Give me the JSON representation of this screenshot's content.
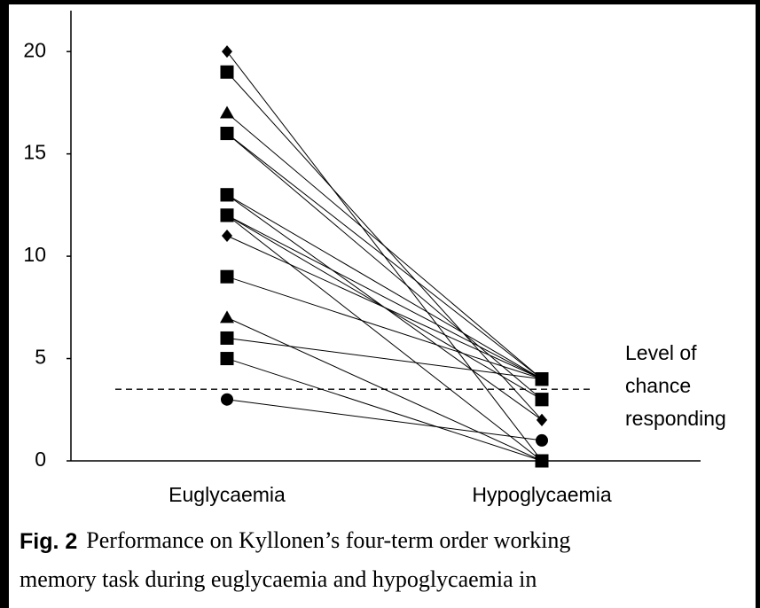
{
  "chart_data": {
    "type": "paired",
    "categories": [
      "Euglycaemia",
      "Hypoglycaemia"
    ],
    "ylim": [
      0,
      22
    ],
    "yticks": [
      0,
      5,
      10,
      15,
      20
    ],
    "color": "#000000",
    "series": [
      {
        "markers": [
          "diamond",
          "square"
        ],
        "values": [
          20,
          0
        ]
      },
      {
        "markers": [
          "square",
          "diamond"
        ],
        "values": [
          19,
          2
        ]
      },
      {
        "markers": [
          "triangle",
          "square"
        ],
        "values": [
          17,
          4
        ]
      },
      {
        "markers": [
          "square",
          "square"
        ],
        "values": [
          16,
          4
        ]
      },
      {
        "markers": [
          "square",
          "square"
        ],
        "values": [
          16,
          3
        ]
      },
      {
        "markers": [
          "square",
          "square"
        ],
        "values": [
          13,
          4
        ]
      },
      {
        "markers": [
          "square",
          "diamond"
        ],
        "values": [
          13,
          2
        ]
      },
      {
        "markers": [
          "square",
          "square"
        ],
        "values": [
          12,
          4
        ]
      },
      {
        "markers": [
          "square",
          "square"
        ],
        "values": [
          12,
          3
        ]
      },
      {
        "markers": [
          "square",
          "square"
        ],
        "values": [
          12,
          0
        ]
      },
      {
        "markers": [
          "diamond",
          "square"
        ],
        "values": [
          11,
          4
        ]
      },
      {
        "markers": [
          "square",
          "square"
        ],
        "values": [
          9,
          4
        ]
      },
      {
        "markers": [
          "triangle",
          "square"
        ],
        "values": [
          7,
          0
        ]
      },
      {
        "markers": [
          "square",
          "square"
        ],
        "values": [
          6,
          4
        ]
      },
      {
        "markers": [
          "square",
          "square"
        ],
        "values": [
          5,
          0
        ]
      },
      {
        "markers": [
          "circle",
          "circle"
        ],
        "values": [
          3,
          1
        ]
      }
    ],
    "reference_line": {
      "value": 3.5,
      "dashed": true,
      "label_lines": [
        "Level of",
        "chance",
        "responding"
      ]
    },
    "caption": {
      "label": "Fig. 2",
      "lines": [
        "Performance on Kyllonen’s four-term order working",
        "memory task during euglycaemia and hypoglycaemia in"
      ]
    }
  }
}
